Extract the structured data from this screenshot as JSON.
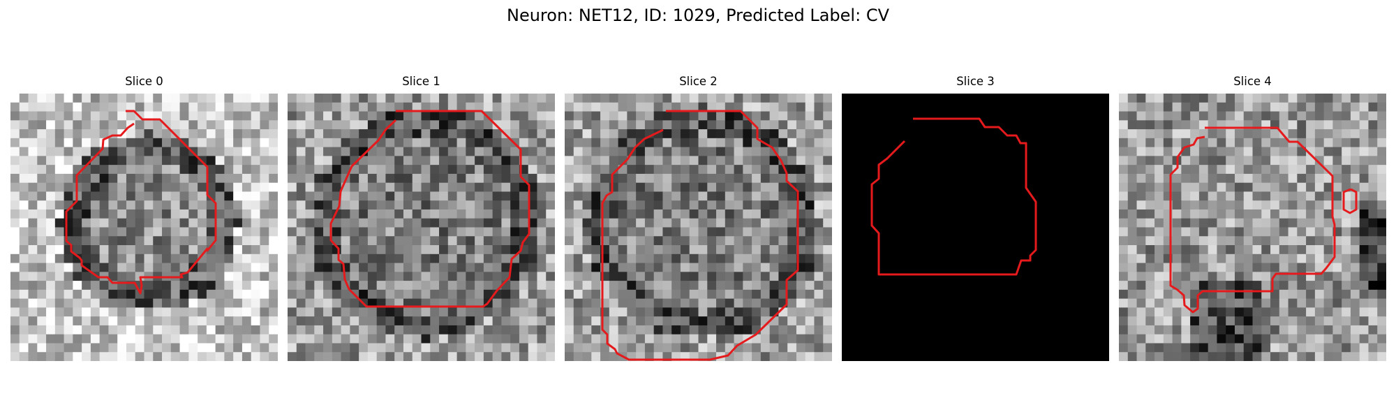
{
  "figure": {
    "title": "Neuron: NET12, ID: 1029, Predicted Label: CV"
  },
  "panels": [
    {
      "title": "Slice 0",
      "seed": 11,
      "background": "noise",
      "bias": "ring-bright-outside"
    },
    {
      "title": "Slice 1",
      "seed": 23,
      "background": "noise",
      "bias": "dark-ring"
    },
    {
      "title": "Slice 2",
      "seed": 37,
      "background": "noise",
      "bias": "dark-ring"
    },
    {
      "title": "Slice 3",
      "seed": 0,
      "background": "black",
      "bias": "none"
    },
    {
      "title": "Slice 4",
      "seed": 53,
      "background": "noise",
      "bias": "dark-bottom"
    }
  ],
  "contour_color": "#e41a1c"
}
